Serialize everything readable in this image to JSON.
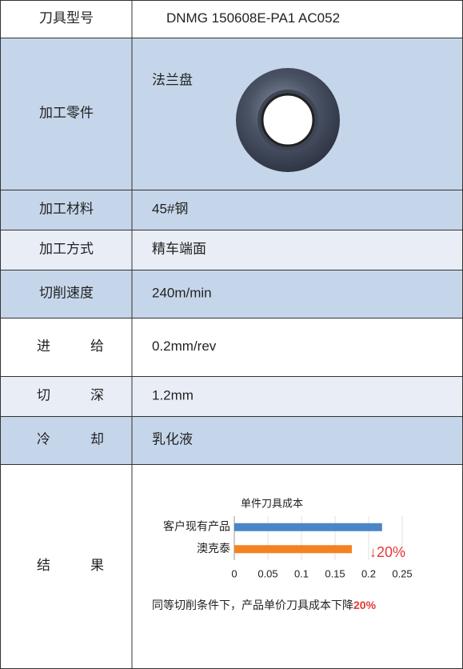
{
  "table": {
    "rows": [
      [
        "刀具型号",
        "DNMG 150608E-PA1 AC052"
      ],
      [
        "加工零件",
        "法兰盘"
      ],
      [
        "加工材料",
        "45#钢"
      ],
      [
        "加工方式",
        "精车端面"
      ],
      [
        "切削速度",
        "240m/min"
      ],
      [
        "进给",
        "0.2mm/rev"
      ],
      [
        "切深",
        "1.2mm"
      ],
      [
        "冷却",
        "乳化液"
      ]
    ],
    "result_label": "结果",
    "note": "同等切削条件下，产品单价刀具成本下降",
    "note_highlight": "20%"
  },
  "chart_data": {
    "type": "bar",
    "orientation": "horizontal",
    "title": "单件刀具成本",
    "categories": [
      "客户现有产品",
      "澳克泰"
    ],
    "values": [
      0.22,
      0.175
    ],
    "colors": [
      "#4a86c5",
      "#f58220"
    ],
    "xlim": [
      0,
      0.25
    ],
    "xticks": [
      0,
      0.05,
      0.1,
      0.15,
      0.2,
      0.25
    ],
    "grid": true,
    "annotation": "↓20%"
  }
}
